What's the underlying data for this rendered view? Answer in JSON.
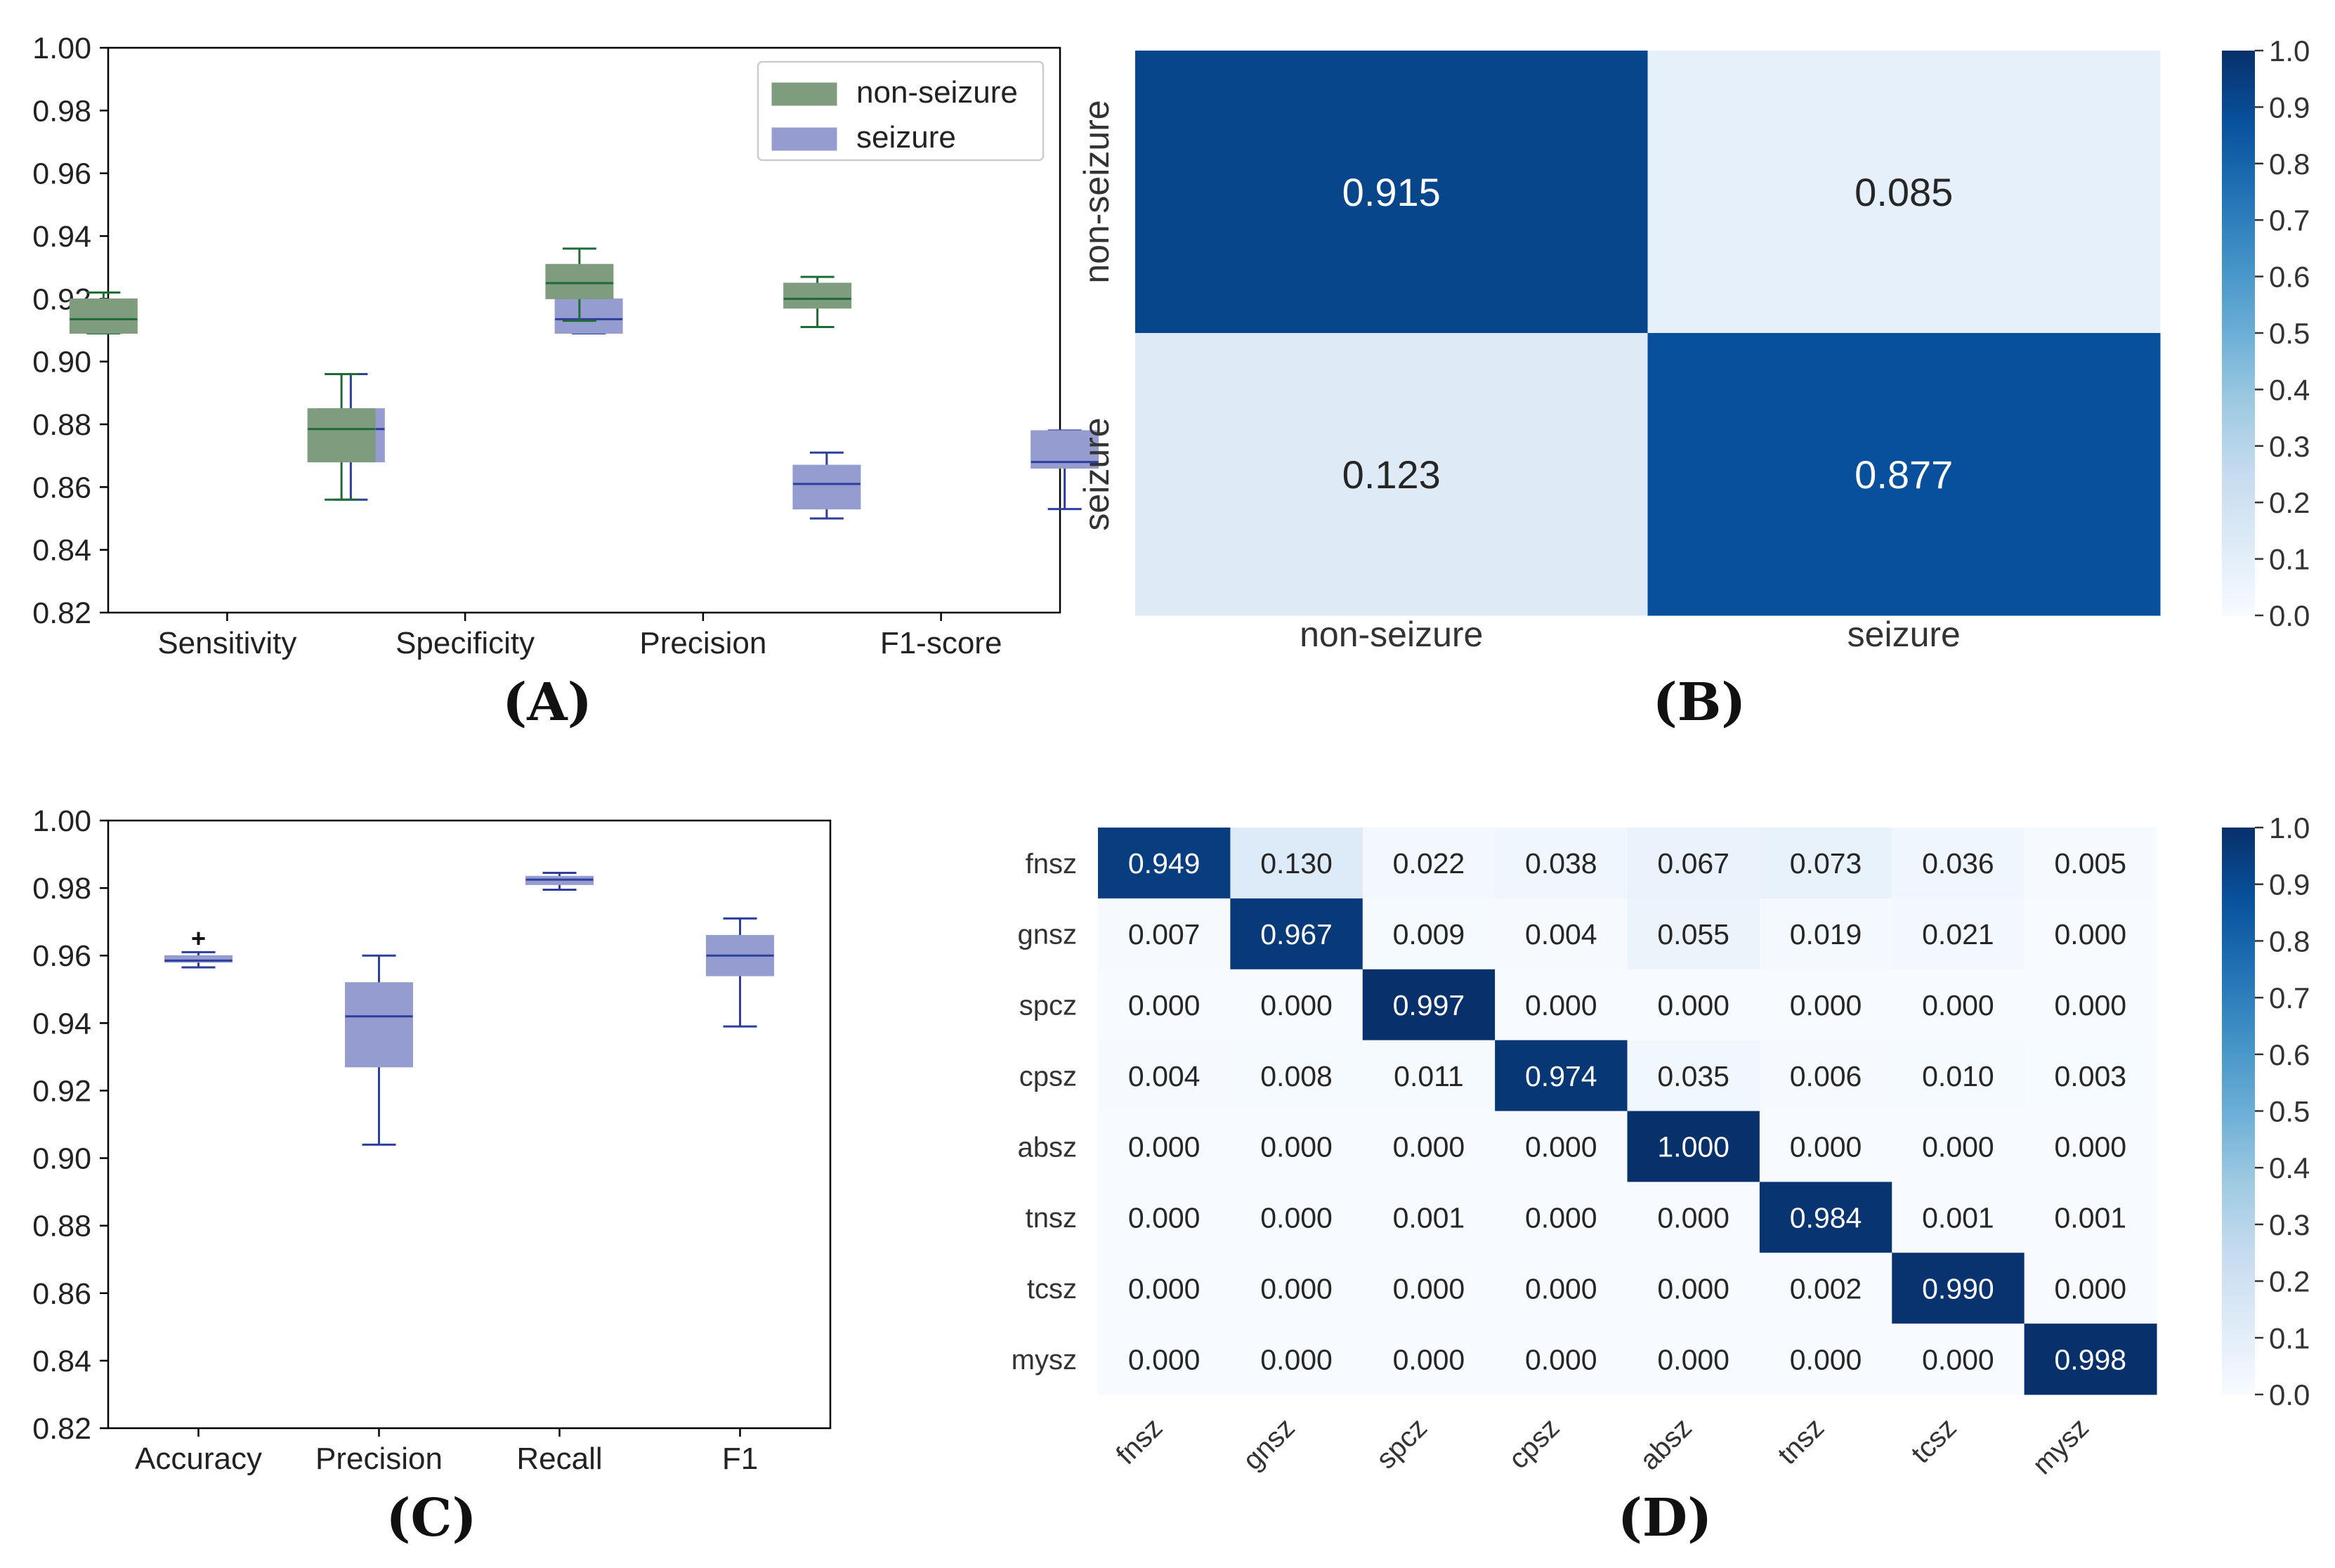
{
  "panel_labels": [
    "(A)",
    "(B)",
    "(C)",
    "(D)"
  ],
  "colors": {
    "green_fill": "#7f9c7f",
    "green_edge": "#1e6b36",
    "blue_fill": "#959dd0",
    "blue_edge": "#2d3e9c",
    "heat_low": "#f7fbff",
    "heat_high": "#08306b"
  },
  "chart_data": [
    {
      "id": "A",
      "type": "box",
      "title": "",
      "xlabel": "",
      "ylabel": "",
      "ylim": [
        0.82,
        1.0
      ],
      "yticks": [
        "0.82",
        "0.84",
        "0.86",
        "0.88",
        "0.90",
        "0.92",
        "0.94",
        "0.96",
        "0.98",
        "1.00"
      ],
      "categories": [
        "Sensitivity",
        "Specificity",
        "Precision",
        "F1-score"
      ],
      "legend": {
        "position": "top-right",
        "entries": [
          "non-seizure",
          "seizure"
        ]
      },
      "series": [
        {
          "name": "non-seizure",
          "boxes": [
            {
              "min": 0.909,
              "q1": 0.909,
              "median": 0.9135,
              "q3": 0.92,
              "max": 0.922
            },
            {
              "min": 0.856,
              "q1": 0.868,
              "median": 0.8785,
              "q3": 0.885,
              "max": 0.896
            },
            {
              "min": 0.913,
              "q1": 0.92,
              "median": 0.925,
              "q3": 0.931,
              "max": 0.936
            },
            {
              "min": 0.911,
              "q1": 0.917,
              "median": 0.92,
              "q3": 0.925,
              "max": 0.927
            }
          ]
        },
        {
          "name": "seizure",
          "boxes": [
            {
              "min": 0.856,
              "q1": 0.868,
              "median": 0.8785,
              "q3": 0.885,
              "max": 0.896
            },
            {
              "min": 0.909,
              "q1": 0.909,
              "median": 0.9135,
              "q3": 0.92,
              "max": 0.922
            },
            {
              "min": 0.85,
              "q1": 0.853,
              "median": 0.861,
              "q3": 0.867,
              "max": 0.871
            },
            {
              "min": 0.853,
              "q1": 0.866,
              "median": 0.868,
              "q3": 0.878,
              "max": 0.878
            }
          ]
        }
      ]
    },
    {
      "id": "B",
      "type": "heatmap",
      "rows": [
        "non-seizure",
        "seizure"
      ],
      "cols": [
        "non-seizure",
        "seizure"
      ],
      "values": [
        [
          0.915,
          0.085
        ],
        [
          0.123,
          0.877
        ]
      ],
      "labels": [
        [
          "0.915",
          "0.085"
        ],
        [
          "0.123",
          "0.877"
        ]
      ],
      "colorbar_ticks": [
        "0.0",
        "0.1",
        "0.2",
        "0.3",
        "0.4",
        "0.5",
        "0.6",
        "0.7",
        "0.8",
        "0.9",
        "1.0"
      ]
    },
    {
      "id": "C",
      "type": "box",
      "title": "",
      "xlabel": "",
      "ylabel": "",
      "ylim": [
        0.82,
        1.0
      ],
      "yticks": [
        "0.82",
        "0.84",
        "0.86",
        "0.88",
        "0.90",
        "0.92",
        "0.94",
        "0.96",
        "0.98",
        "1.00"
      ],
      "categories": [
        "Accuracy",
        "Precision",
        "Recall",
        "F1"
      ],
      "series": [
        {
          "name": "seizure",
          "boxes": [
            {
              "min": 0.9565,
              "q1": 0.958,
              "median": 0.9585,
              "q3": 0.96,
              "max": 0.961,
              "outliers": [
                0.965
              ]
            },
            {
              "min": 0.904,
              "q1": 0.927,
              "median": 0.942,
              "q3": 0.952,
              "max": 0.96,
              "outliers": []
            },
            {
              "min": 0.9795,
              "q1": 0.981,
              "median": 0.9825,
              "q3": 0.9835,
              "max": 0.9845,
              "outliers": []
            },
            {
              "min": 0.939,
              "q1": 0.954,
              "median": 0.96,
              "q3": 0.966,
              "max": 0.971,
              "outliers": []
            }
          ]
        }
      ]
    },
    {
      "id": "D",
      "type": "heatmap",
      "rows": [
        "fnsz",
        "gnsz",
        "spcz",
        "cpsz",
        "absz",
        "tnsz",
        "tcsz",
        "mysz"
      ],
      "cols": [
        "fnsz",
        "gnsz",
        "spcz",
        "cpsz",
        "absz",
        "tnsz",
        "tcsz",
        "mysz"
      ],
      "values": [
        [
          0.949,
          0.13,
          0.022,
          0.038,
          0.067,
          0.073,
          0.036,
          0.005
        ],
        [
          0.007,
          0.967,
          0.009,
          0.004,
          0.055,
          0.019,
          0.021,
          0.0
        ],
        [
          0.0,
          0.0,
          0.997,
          0.0,
          0.0,
          0.0,
          0.0,
          0.0
        ],
        [
          0.004,
          0.008,
          0.011,
          0.974,
          0.035,
          0.006,
          0.01,
          0.003
        ],
        [
          0.0,
          0.0,
          0.0,
          0.0,
          1.0,
          0.0,
          0.0,
          0.0
        ],
        [
          0.0,
          0.0,
          0.001,
          0.0,
          0.0,
          0.984,
          0.001,
          0.001
        ],
        [
          0.0,
          0.0,
          0.0,
          0.0,
          0.0,
          0.002,
          0.99,
          0.0
        ],
        [
          0.0,
          0.0,
          0.0,
          0.0,
          0.0,
          0.0,
          0.0,
          0.998
        ]
      ],
      "labels": [
        [
          "0.949",
          "0.130",
          "0.022",
          "0.038",
          "0.067",
          "0.073",
          "0.036",
          "0.005"
        ],
        [
          "0.007",
          "0.967",
          "0.009",
          "0.004",
          "0.055",
          "0.019",
          "0.021",
          "0.000"
        ],
        [
          "0.000",
          "0.000",
          "0.997",
          "0.000",
          "0.000",
          "0.000",
          "0.000",
          "0.000"
        ],
        [
          "0.004",
          "0.008",
          "0.011",
          "0.974",
          "0.035",
          "0.006",
          "0.010",
          "0.003"
        ],
        [
          "0.000",
          "0.000",
          "0.000",
          "0.000",
          "1.000",
          "0.000",
          "0.000",
          "0.000"
        ],
        [
          "0.000",
          "0.000",
          "0.001",
          "0.000",
          "0.000",
          "0.984",
          "0.001",
          "0.001"
        ],
        [
          "0.000",
          "0.000",
          "0.000",
          "0.000",
          "0.000",
          "0.002",
          "0.990",
          "0.000"
        ],
        [
          "0.000",
          "0.000",
          "0.000",
          "0.000",
          "0.000",
          "0.000",
          "0.000",
          "0.998"
        ]
      ],
      "colorbar_ticks": [
        "0.0",
        "0.1",
        "0.2",
        "0.3",
        "0.4",
        "0.5",
        "0.6",
        "0.7",
        "0.8",
        "0.9",
        "1.0"
      ]
    }
  ]
}
